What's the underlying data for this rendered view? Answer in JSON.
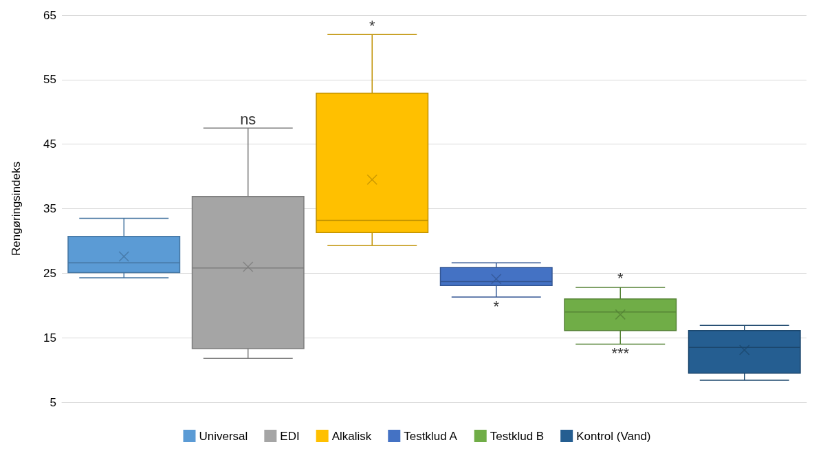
{
  "chart_data": {
    "type": "box",
    "ylabel": "Rengøringsindeks",
    "categories": [
      null,
      null,
      null,
      null,
      null,
      null
    ],
    "ylim": [
      5,
      65
    ],
    "yticks": [
      5,
      15,
      25,
      35,
      45,
      55,
      65
    ],
    "grid": "y",
    "legend": "bottom",
    "marker": "cross",
    "series": [
      {
        "name": "Universal",
        "color": "#5b9bd5",
        "boxes": [
          {
            "low": 24.3,
            "q1": 25.1,
            "median": 26.6,
            "q3": 30.7,
            "high": 33.5,
            "mean": 27.6
          },
          null,
          null,
          null,
          null,
          null
        ]
      },
      {
        "name": "EDI",
        "color": "#a5a5a5",
        "boxes": [
          null,
          {
            "low": 11.8,
            "q1": 13.3,
            "median": 25.8,
            "q3": 36.9,
            "high": 47.5,
            "mean": 26.0
          },
          null,
          null,
          null,
          null
        ]
      },
      {
        "name": "Alkalisk",
        "color": "#ffc000",
        "boxes": [
          null,
          null,
          {
            "low": 29.3,
            "q1": 31.3,
            "median": 33.2,
            "q3": 52.9,
            "high": 62.0,
            "mean": 39.5
          },
          null,
          null,
          null
        ]
      },
      {
        "name": "Testklud A",
        "color": "#4472c4",
        "boxes": [
          null,
          null,
          null,
          {
            "low": 21.3,
            "q1": 23.1,
            "median": 23.7,
            "q3": 25.9,
            "high": 26.6,
            "mean": 24.1
          },
          null,
          null
        ]
      },
      {
        "name": "Testklud B",
        "color": "#70ad47",
        "boxes": [
          null,
          null,
          null,
          null,
          {
            "low": 14.0,
            "q1": 16.1,
            "median": 19.0,
            "q3": 21.0,
            "high": 22.8,
            "mean": 18.6
          },
          null
        ]
      },
      {
        "name": "Kontrol (Vand)",
        "color": "#255e91",
        "boxes": [
          null,
          null,
          null,
          null,
          null,
          {
            "low": 8.4,
            "q1": 9.5,
            "median": 13.5,
            "q3": 16.1,
            "high": 16.9,
            "mean": 13.1
          }
        ]
      }
    ],
    "annotations": [
      "ns",
      "*",
      "*",
      "*",
      "***"
    ]
  }
}
